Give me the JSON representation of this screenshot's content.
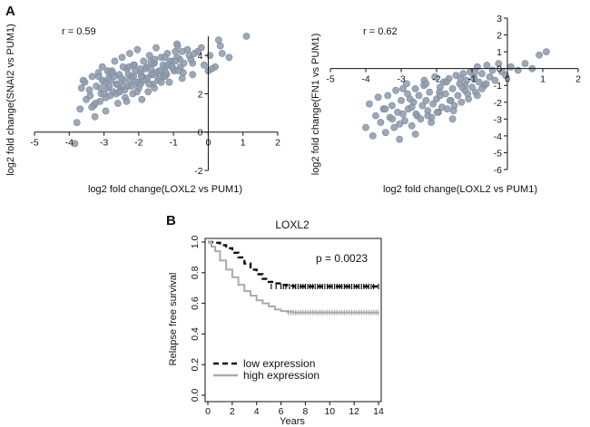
{
  "panels": {
    "a_label": "A",
    "b_label": "B"
  },
  "chart_data": [
    {
      "type": "scatter",
      "annotation": "r = 0.59",
      "xlabel": "log2 fold change(LOXL2 vs PUM1)",
      "ylabel": "log2 fold change(SNAI2 vs PUM1)",
      "xlim": [
        -5,
        2
      ],
      "ylim": [
        -2,
        5
      ],
      "xticks": [
        "-5",
        "-4",
        "-3",
        "-2",
        "-1",
        "0",
        "1",
        "2"
      ],
      "yticks": [
        "-2",
        "0",
        "2",
        "4"
      ],
      "x": [
        -3.84,
        -3.78,
        -3.69,
        -3.6,
        -3.51,
        -3.42,
        -3.34,
        -3.29,
        -3.26,
        -3.22,
        -3.16,
        -3.12,
        -3.08,
        -3.05,
        -2.99,
        -2.95,
        -2.9,
        -2.87,
        -2.82,
        -2.77,
        -2.73,
        -2.69,
        -2.64,
        -2.6,
        -2.56,
        -2.53,
        -2.48,
        -2.44,
        -2.39,
        -2.35,
        -2.3,
        -2.26,
        -2.21,
        -2.17,
        -2.13,
        -2.08,
        -2.04,
        -2.0,
        -1.95,
        -1.91,
        -1.86,
        -1.82,
        -1.77,
        -1.73,
        -1.69,
        -1.64,
        -1.6,
        -1.55,
        -1.5,
        -1.45,
        -1.41,
        -1.36,
        -1.3,
        -1.24,
        -1.18,
        -1.12,
        -1.05,
        -0.98,
        -0.9,
        -0.82,
        -0.72,
        -0.6,
        -0.45,
        -0.3,
        -0.12,
        0.05,
        0.2,
        0.35,
        0.6,
        1.1,
        -3.4,
        -3.1,
        -2.95,
        -2.8,
        -2.65,
        -2.5,
        -2.4,
        -2.3,
        -2.2,
        -2.1,
        -2.0,
        -1.9,
        -1.8,
        -1.7,
        -1.6,
        -1.5,
        -1.4,
        -1.3,
        -1.2,
        -1.1,
        -1.0,
        -0.9,
        -0.8,
        -0.7,
        -0.5,
        -3.55,
        -3.25,
        -2.85,
        -2.45,
        -2.05,
        -1.65,
        -1.25,
        -0.85,
        -0.45,
        -3.0,
        -2.7,
        -2.35,
        -1.95,
        -1.55,
        -1.15,
        -0.75,
        -2.9,
        -2.55,
        -2.15,
        -1.75,
        -1.35,
        -0.95,
        -0.55,
        -0.2,
        0.1,
        0.4,
        -3.65,
        -3.35,
        -3.05,
        -2.75,
        -2.45,
        -2.15,
        -1.85,
        -1.55,
        -1.25,
        -0.95,
        -2.62,
        -2.28,
        -1.92,
        -1.58,
        -1.22,
        -0.88,
        -3.15,
        -2.85,
        -2.55,
        -2.25,
        -1.95,
        -1.65,
        -1.35,
        -1.05,
        -0.75,
        -0.4,
        0.0,
        0.3
      ],
      "y": [
        -0.6,
        0.5,
        1.2,
        2.7,
        1.7,
        2.2,
        2.9,
        1.4,
        0.8,
        2.4,
        3.1,
        1.6,
        2.0,
        3.4,
        2.6,
        1.1,
        2.3,
        2.8,
        1.9,
        3.2,
        2.1,
        3.7,
        2.5,
        1.5,
        3.0,
        2.2,
        3.9,
        2.7,
        1.8,
        3.3,
        2.4,
        4.1,
        2.9,
        2.0,
        3.5,
        2.6,
        4.3,
        2.3,
        3.1,
        1.7,
        3.7,
        2.8,
        3.4,
        2.1,
        4.0,
        3.0,
        2.5,
        3.6,
        4.4,
        2.7,
        3.2,
        3.9,
        2.9,
        3.4,
        4.1,
        2.6,
        3.7,
        3.2,
        4.6,
        3.8,
        3.1,
        4.3,
        3.6,
        4.2,
        3.5,
        4.0,
        3.4,
        4.5,
        3.9,
        5.0,
        1.9,
        2.3,
        1.8,
        2.7,
        2.0,
        2.8,
        2.2,
        3.0,
        2.4,
        3.2,
        2.6,
        2.9,
        3.3,
        2.5,
        3.6,
        3.1,
        2.8,
        3.5,
        3.0,
        3.7,
        3.3,
        3.9,
        3.4,
        3.6,
        3.8,
        2.6,
        1.5,
        3.1,
        3.4,
        2.1,
        3.7,
        3.9,
        3.2,
        3.0,
        2.0,
        2.9,
        1.6,
        2.5,
        2.3,
        3.5,
        4.2,
        3.2,
        2.1,
        3.5,
        2.8,
        3.2,
        3.7,
        4.0,
        4.4,
        3.3,
        4.1,
        2.3,
        1.3,
        2.7,
        3.1,
        2.4,
        2.9,
        2.7,
        3.8,
        2.9,
        4.2,
        2.5,
        3.4,
        2.9,
        3.0,
        3.1,
        4.5,
        2.9,
        2.4,
        2.1,
        2.7,
        3.3,
        3.3,
        2.6,
        3.4,
        2.8,
        4.1,
        3.2,
        4.8
      ]
    },
    {
      "type": "scatter",
      "annotation": "r = 0.62",
      "xlabel": "log2 fold change(LOXL2 vs PUM1)",
      "ylabel": "log2 fold change(FN1 vs PUM1)",
      "xlim": [
        -5,
        2
      ],
      "ylim": [
        -6,
        3
      ],
      "xticks": [
        "-5",
        "-4",
        "-3",
        "-2",
        "-1",
        "0",
        "1",
        "2"
      ],
      "yticks": [
        "-6",
        "-5",
        "-4",
        "-3",
        "-2",
        "-1",
        "0",
        "1",
        "2",
        "3"
      ],
      "x": [
        -4.0,
        -3.9,
        -3.8,
        -3.72,
        -3.65,
        -3.58,
        -3.5,
        -3.44,
        -3.38,
        -3.32,
        -3.26,
        -3.2,
        -3.15,
        -3.1,
        -3.05,
        -3.0,
        -2.95,
        -2.9,
        -2.85,
        -2.8,
        -2.75,
        -2.7,
        -2.65,
        -2.6,
        -2.55,
        -2.5,
        -2.45,
        -2.4,
        -2.35,
        -2.3,
        -2.25,
        -2.2,
        -2.15,
        -2.1,
        -2.05,
        -2.0,
        -1.95,
        -1.9,
        -1.85,
        -1.8,
        -1.75,
        -1.7,
        -1.65,
        -1.6,
        -1.55,
        -1.5,
        -1.45,
        -1.4,
        -1.35,
        -1.3,
        -1.25,
        -1.2,
        -1.15,
        -1.1,
        -1.05,
        -1.0,
        -0.95,
        -0.9,
        -0.85,
        -0.8,
        -0.72,
        -0.65,
        -0.58,
        -0.5,
        -0.42,
        -0.35,
        -0.25,
        -0.15,
        -0.05,
        0.1,
        0.3,
        0.5,
        0.7,
        0.9,
        1.1,
        -3.45,
        -3.05,
        -2.82,
        -2.58,
        -2.36,
        -2.14,
        -1.92,
        -1.72,
        -1.52,
        -1.32,
        -1.12,
        -0.92,
        -0.72,
        -2.95,
        -2.6,
        -2.25,
        -1.9,
        -1.55,
        -1.2,
        -0.85,
        -3.25,
        -2.7,
        -2.3,
        -1.98,
        -1.62,
        -1.28,
        -0.95,
        -0.6
      ],
      "y": [
        -3.5,
        -2.1,
        -4.0,
        -2.8,
        -1.7,
        -3.2,
        -2.4,
        -3.8,
        -1.6,
        -2.9,
        -2.2,
        -3.5,
        -1.3,
        -2.6,
        -4.2,
        -1.9,
        -2.7,
        -3.1,
        -0.9,
        -2.4,
        -1.8,
        -3.4,
        -2.0,
        -1.2,
        -2.8,
        -1.6,
        -3.0,
        -2.2,
        -0.7,
        -1.9,
        -2.5,
        -1.4,
        -3.2,
        -2.1,
        -0.5,
        -1.8,
        -2.6,
        -1.1,
        -2.3,
        -0.8,
        -1.5,
        -2.4,
        -0.6,
        -1.9,
        -1.2,
        -2.2,
        -0.4,
        -1.6,
        -0.9,
        -2.0,
        -0.3,
        -1.3,
        -0.7,
        -1.8,
        -0.2,
        -1.1,
        -0.5,
        -1.4,
        0.1,
        -0.8,
        -0.3,
        -1.0,
        0.2,
        -0.5,
        -0.1,
        -0.7,
        0.3,
        -0.2,
        -0.4,
        0.1,
        -0.1,
        0.3,
        0.0,
        0.8,
        1.0,
        -2.4,
        -3.3,
        -1.5,
        -2.7,
        -1.0,
        -2.9,
        -1.4,
        -0.8,
        -2.5,
        -0.6,
        -1.5,
        -0.2,
        -1.2,
        -1.2,
        -3.9,
        -2.8,
        -1.6,
        -3.0,
        -1.0,
        -1.6,
        -3.0,
        -2.3,
        -0.9,
        -2.6,
        -1.9,
        -1.1,
        -0.6,
        -0.9
      ]
    },
    {
      "type": "line",
      "title": "LOXL2",
      "annotation": "p = 0.0023",
      "xlabel": "Years",
      "ylabel": "Relapse free survival",
      "xlim": [
        0,
        14
      ],
      "ylim": [
        0,
        1
      ],
      "xticks": [
        "0",
        "2",
        "4",
        "6",
        "8",
        "10",
        "12",
        "14"
      ],
      "yticks": [
        "0.0",
        "0.2",
        "0.4",
        "0.6",
        "0.8",
        "1.0"
      ],
      "series": [
        {
          "name": "low expression",
          "style": "dashed",
          "color": "#111111",
          "x": [
            0,
            0.5,
            1.0,
            1.5,
            2.0,
            2.5,
            3.0,
            3.5,
            4.0,
            4.5,
            5.0,
            5.5,
            6.0,
            6.5,
            7.0,
            14.0
          ],
          "y": [
            1.0,
            0.995,
            0.98,
            0.96,
            0.93,
            0.9,
            0.86,
            0.82,
            0.79,
            0.76,
            0.74,
            0.73,
            0.72,
            0.715,
            0.71,
            0.71
          ],
          "censor_x": [
            5.2,
            5.6,
            6.0,
            6.2,
            6.4,
            6.7,
            7.0,
            7.2,
            7.4,
            7.6,
            7.8,
            8.0,
            8.2,
            8.4,
            8.6,
            8.8,
            9.0,
            9.2,
            9.4,
            9.6,
            9.8,
            10.0,
            10.2,
            10.4,
            10.6,
            10.8,
            11.0,
            11.2,
            11.4,
            11.6,
            11.8,
            12.0,
            12.2,
            12.4,
            12.6,
            12.8,
            13.0,
            13.2,
            13.4,
            13.6,
            14.0
          ]
        },
        {
          "name": "high expression",
          "style": "solid",
          "color": "#aaaaaa",
          "x": [
            0,
            0.3,
            0.6,
            1.0,
            1.5,
            2.0,
            2.5,
            3.0,
            3.5,
            4.0,
            4.5,
            5.0,
            5.5,
            6.0,
            6.5,
            7.0,
            14.0
          ],
          "y": [
            1.0,
            0.97,
            0.94,
            0.88,
            0.82,
            0.77,
            0.72,
            0.68,
            0.65,
            0.62,
            0.6,
            0.58,
            0.56,
            0.55,
            0.545,
            0.54,
            0.54
          ],
          "censor_x": [
            6.6,
            6.8,
            7.0,
            7.2,
            7.4,
            7.6,
            7.8,
            8.0,
            8.2,
            8.4,
            8.6,
            8.8,
            9.0,
            9.2,
            9.4,
            9.6,
            9.8,
            10.0,
            10.2,
            10.4,
            10.6,
            10.8,
            11.0,
            11.2,
            11.4,
            11.6,
            11.8,
            12.0,
            12.2,
            12.4,
            12.6,
            12.8,
            13.0,
            13.2,
            13.4,
            13.6,
            13.8,
            14.0
          ]
        }
      ],
      "legend": [
        "low expression",
        "high expression"
      ]
    }
  ],
  "colors": {
    "point_fill": "#8f9cae",
    "point_stroke": "#7a8899",
    "axis": "#111111"
  }
}
